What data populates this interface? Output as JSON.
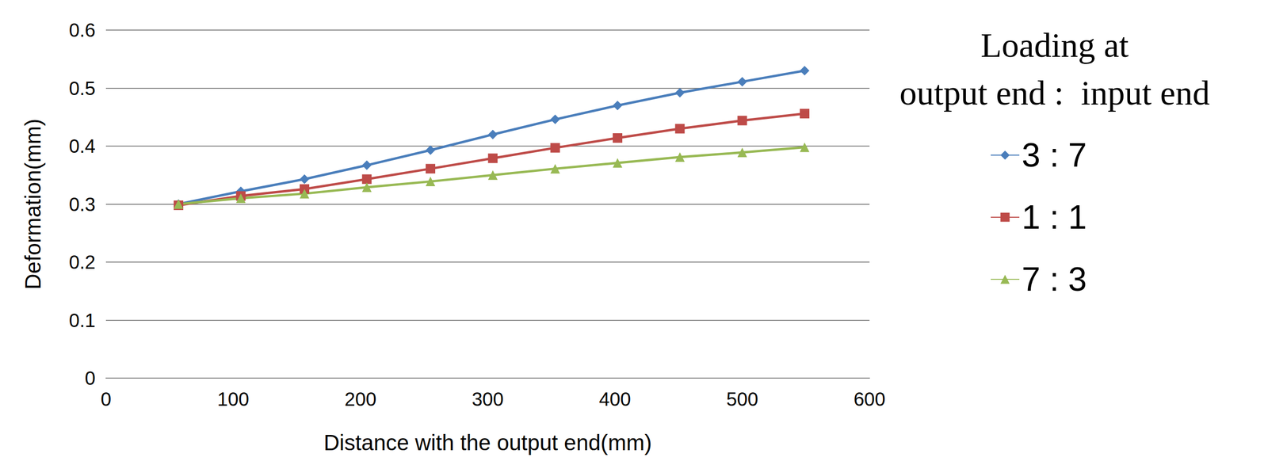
{
  "chart_data": {
    "type": "line",
    "title": "Loading at\noutput end :  input end",
    "x_label": "Distance with the output end(mm)",
    "y_label": "Deformation(mm)",
    "x": [
      57,
      106,
      156,
      205,
      255,
      304,
      353,
      402,
      451,
      500,
      549
    ],
    "series": [
      {
        "name": "3 : 7",
        "color": "#4a7ebb",
        "marker": "diamond",
        "values": [
          0.3,
          0.322,
          0.343,
          0.367,
          0.393,
          0.42,
          0.446,
          0.47,
          0.492,
          0.511,
          0.53
        ]
      },
      {
        "name": "1 : 1",
        "color": "#be4b48",
        "marker": "square",
        "values": [
          0.298,
          0.314,
          0.326,
          0.343,
          0.361,
          0.379,
          0.397,
          0.414,
          0.43,
          0.444,
          0.456
        ]
      },
      {
        "name": "7 : 3",
        "color": "#98b954",
        "marker": "triangle",
        "values": [
          0.3,
          0.31,
          0.318,
          0.329,
          0.339,
          0.35,
          0.361,
          0.371,
          0.381,
          0.389,
          0.398
        ]
      }
    ],
    "xlim": [
      0,
      600
    ],
    "xticks": [
      0,
      100,
      200,
      300,
      400,
      500,
      600
    ],
    "ylim": [
      0,
      0.6
    ],
    "yticks": [
      0,
      0.1,
      0.2,
      0.3,
      0.4,
      0.5,
      0.6
    ],
    "grid": true,
    "legend": "right"
  }
}
